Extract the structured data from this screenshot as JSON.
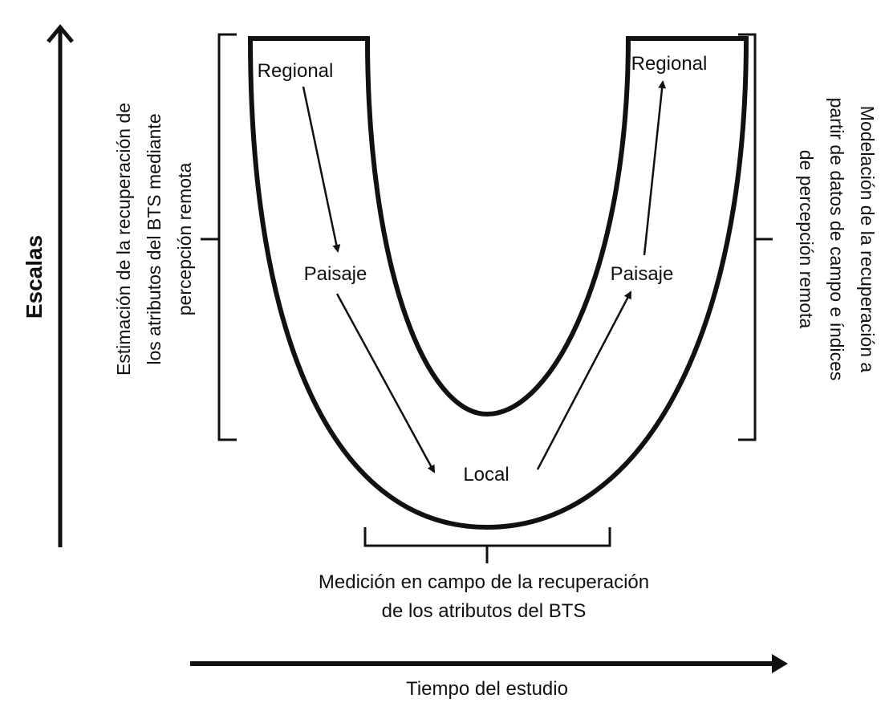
{
  "axes": {
    "y_label": "Escalas",
    "x_label": "Tiempo del estudio"
  },
  "nodes": {
    "left_regional": "Regional",
    "left_paisaje": "Paisaje",
    "local": "Local",
    "right_paisaje": "Paisaje",
    "right_regional": "Regional"
  },
  "left_bracket": {
    "lines": [
      "Estimación de la recuperación de",
      "los atributos del BTS mediante",
      "percepción remota"
    ]
  },
  "right_bracket": {
    "lines": [
      "Modelación de la recuperación a",
      "partir de datos de campo e índices",
      "de percepción remota"
    ]
  },
  "bottom_bracket": {
    "lines": [
      "Medición en campo de la recuperación",
      "de los atributos del BTS"
    ]
  }
}
